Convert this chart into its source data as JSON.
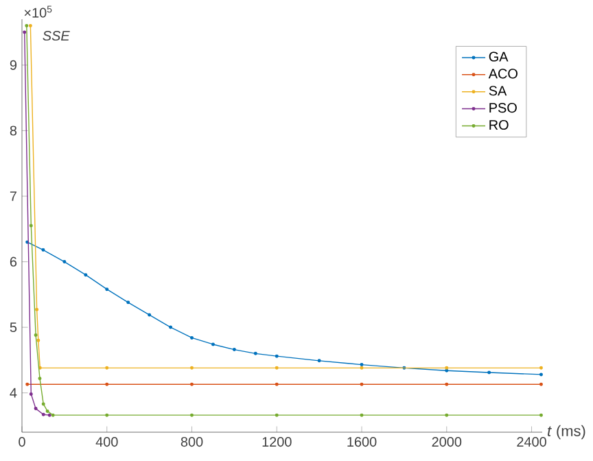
{
  "chart_data": {
    "type": "line",
    "xlabel": "*t* (ms)",
    "ylabel": "SSE",
    "annotations": [
      "×10$^{5}$"
    ],
    "xlim": [
      0,
      2450
    ],
    "ylim": [
      3.4,
      9.7
    ],
    "xticks": [
      0,
      400,
      800,
      1200,
      1600,
      2000,
      2400
    ],
    "yticks": [
      4,
      5,
      6,
      7,
      8,
      9
    ],
    "grid": false,
    "legend": "top right",
    "marker": "circle",
    "line_style": "solid",
    "series": [
      {
        "name": "GA",
        "color": "#0072bd",
        "x": [
          25,
          100,
          200,
          300,
          400,
          500,
          600,
          700,
          800,
          900,
          1000,
          1100,
          1200,
          1400,
          1600,
          1800,
          2000,
          2200,
          2445
        ],
        "values": [
          6.3,
          6.18,
          6.0,
          5.8,
          5.58,
          5.38,
          5.19,
          5.0,
          4.84,
          4.74,
          4.66,
          4.6,
          4.56,
          4.49,
          4.43,
          4.38,
          4.34,
          4.31,
          4.28
        ]
      },
      {
        "name": "ACO",
        "color": "#d95319",
        "x": [
          25,
          400,
          800,
          1200,
          1600,
          2000,
          2445
        ],
        "values": [
          4.13,
          4.13,
          4.13,
          4.13,
          4.13,
          4.13,
          4.13
        ]
      },
      {
        "name": "SA",
        "color": "#edb120",
        "x": [
          40,
          70,
          77,
          85,
          400,
          800,
          1200,
          1600,
          2000,
          2445
        ],
        "values": [
          9.6,
          5.27,
          4.8,
          4.38,
          4.38,
          4.38,
          4.38,
          4.38,
          4.38,
          4.38
        ]
      },
      {
        "name": "PSO",
        "color": "#7e2f8e",
        "x": [
          12,
          43,
          65,
          101,
          130
        ],
        "values": [
          9.5,
          3.98,
          3.76,
          3.67,
          3.66
        ]
      },
      {
        "name": "RO",
        "color": "#77ac30",
        "x": [
          22,
          43,
          65,
          84,
          101,
          120,
          146,
          400,
          800,
          1200,
          1600,
          2000,
          2445
        ],
        "values": [
          9.6,
          6.55,
          4.88,
          4.22,
          3.83,
          3.72,
          3.66,
          3.66,
          3.66,
          3.66,
          3.66,
          3.66,
          3.66
        ]
      }
    ]
  }
}
